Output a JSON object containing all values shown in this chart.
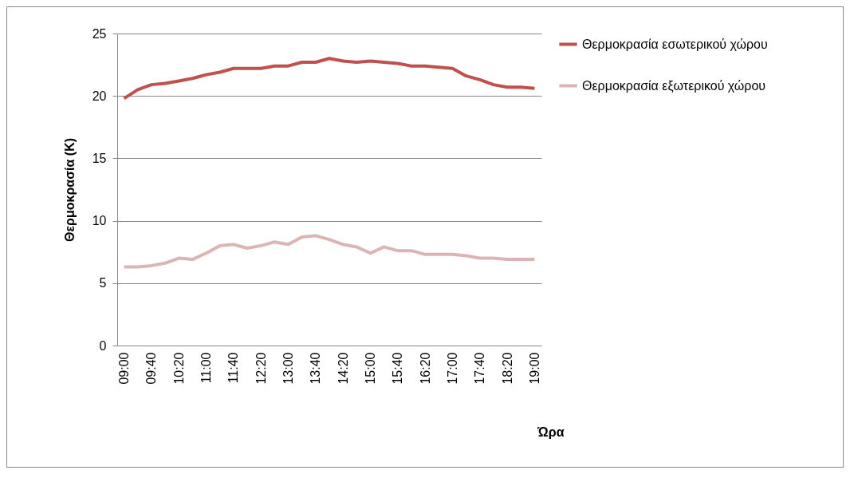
{
  "chart_data": {
    "type": "line",
    "xlabel": "Ώρα",
    "ylabel": "Θερμοκρασία (K)",
    "categories": [
      "09:00",
      null,
      "09:40",
      null,
      "10:20",
      null,
      "11:00",
      null,
      "11:40",
      null,
      "12:20",
      null,
      "13:00",
      null,
      "13:40",
      null,
      "14:20",
      null,
      "15:00",
      null,
      "15:40",
      null,
      "16:20",
      null,
      "17:00",
      null,
      "17:40",
      null,
      "18:20",
      null,
      "19:00"
    ],
    "series": [
      {
        "name": "Θερμοκρασία εσωτερικού χώρου",
        "color": "#c0504d",
        "values": [
          19.8,
          20.5,
          20.9,
          21.0,
          21.2,
          21.4,
          21.7,
          21.9,
          22.2,
          22.2,
          22.2,
          22.4,
          22.4,
          22.7,
          22.7,
          23.0,
          22.8,
          22.7,
          22.8,
          22.7,
          22.6,
          22.4,
          22.4,
          22.3,
          22.2,
          21.6,
          21.3,
          20.9,
          20.7,
          20.7,
          20.6
        ]
      },
      {
        "name": "Θερμοκρασία εξωτερικού χώρου",
        "color": "#dbb5b4",
        "values": [
          6.3,
          6.3,
          6.4,
          6.6,
          7.0,
          6.9,
          7.4,
          8.0,
          8.1,
          7.8,
          8.0,
          8.3,
          8.1,
          8.7,
          8.8,
          8.5,
          8.1,
          7.9,
          7.4,
          7.9,
          7.6,
          7.6,
          7.3,
          7.3,
          7.3,
          7.2,
          7.0,
          7.0,
          6.9,
          6.9,
          6.9
        ]
      }
    ],
    "ylim": [
      0,
      25
    ],
    "yticks": [
      0,
      5,
      10,
      15,
      20,
      25
    ],
    "grid": "y",
    "legend": "right",
    "marker": "none",
    "line_style": "solid"
  }
}
